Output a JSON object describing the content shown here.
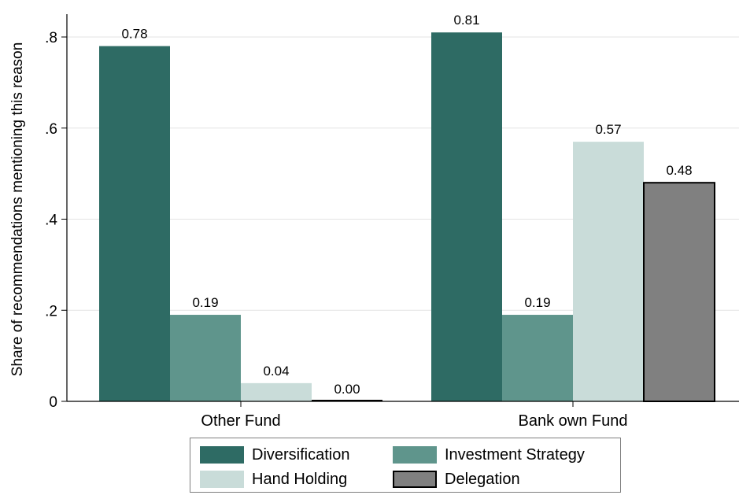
{
  "chart_data": {
    "type": "bar",
    "categories": [
      "Other Fund",
      "Bank own Fund"
    ],
    "series": [
      {
        "name": "Diversification",
        "values": [
          0.78,
          0.81
        ],
        "color": "#2e6b64"
      },
      {
        "name": "Investment Strategy",
        "values": [
          0.19,
          0.19
        ],
        "color": "#5f958c"
      },
      {
        "name": "Hand Holding",
        "values": [
          0.04,
          0.57
        ],
        "color": "#c9dcd9"
      },
      {
        "name": "Delegation",
        "values": [
          0.0,
          0.48
        ],
        "color": "#808080"
      }
    ],
    "data_labels": [
      [
        "0.78",
        "0.19",
        "0.04",
        "0.00"
      ],
      [
        "0.81",
        "0.19",
        "0.57",
        "0.48"
      ]
    ],
    "title": "",
    "xlabel": "",
    "ylabel": "Share of recommendations mentioning this reason",
    "ylim": [
      0,
      0.85
    ],
    "yticks": [
      0,
      0.2,
      0.4,
      0.6,
      0.8
    ],
    "ytick_labels": [
      "0",
      ".2",
      ".4",
      ".6",
      ".8"
    ],
    "grid": true,
    "legend_position": "bottom"
  },
  "legend": {
    "items": [
      {
        "label": "Diversification",
        "color": "#2e6b64"
      },
      {
        "label": "Investment Strategy",
        "color": "#5f958c"
      },
      {
        "label": "Hand Holding",
        "color": "#c9dcd9"
      },
      {
        "label": "Delegation",
        "color": "#808080"
      }
    ]
  }
}
